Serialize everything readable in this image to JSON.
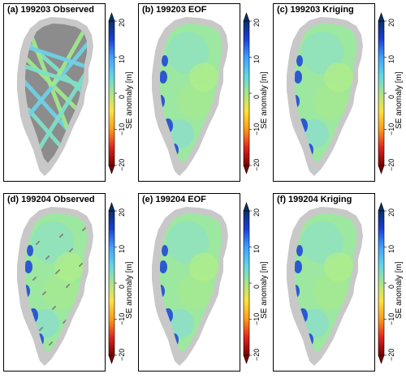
{
  "panels": [
    {
      "id": "a",
      "title": "(a) 199203 Observed",
      "kind": "observed-tracks"
    },
    {
      "id": "b",
      "title": "(b) 199203 EOF",
      "kind": "filled"
    },
    {
      "id": "c",
      "title": "(c) 199203 Kriging",
      "kind": "filled"
    },
    {
      "id": "d",
      "title": "(d) 199204 Observed",
      "kind": "observed-full"
    },
    {
      "id": "e",
      "title": "(e) 199204 EOF",
      "kind": "filled"
    },
    {
      "id": "f",
      "title": "(f) 199204 Kriging",
      "kind": "filled"
    }
  ],
  "colorbar": {
    "label": "SE anomaly [m]",
    "ticks": [
      "20",
      "10",
      "0",
      "−10",
      "−20"
    ],
    "range": [
      -20,
      20
    ],
    "colors": [
      "#08306b",
      "#1a3fd8",
      "#3fa0ff",
      "#5fd6e8",
      "#a8e58a",
      "#ffe13a",
      "#ff9a18",
      "#e3241c",
      "#7a0000"
    ]
  }
}
